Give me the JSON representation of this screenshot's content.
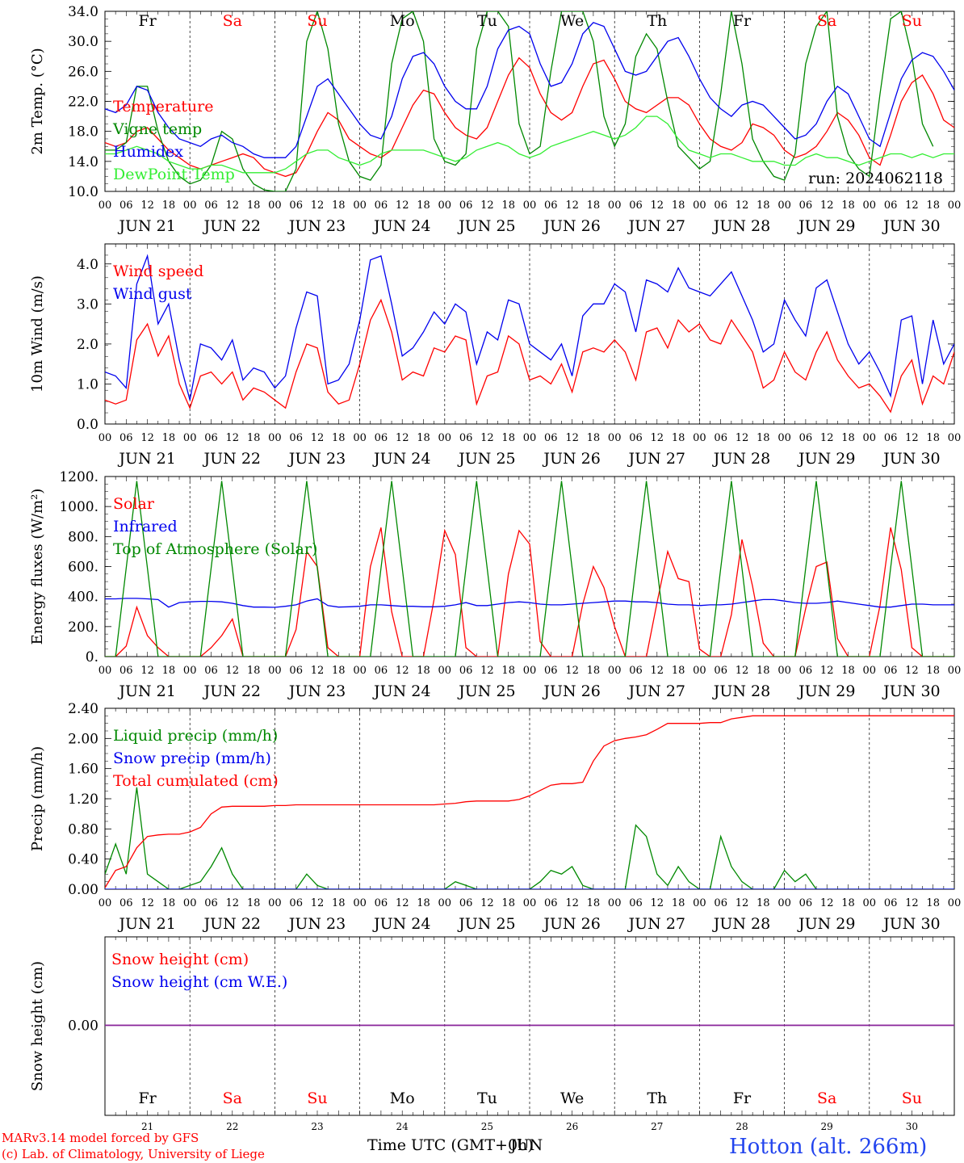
{
  "meta": {
    "run_label": "run: 2024062118",
    "footer_model": "MARv3.14 model forced by GFS",
    "footer_lab": "(c) Lab. of Climatology, University of Liege",
    "footer_time": "Time UTC (GMT+0h)",
    "footer_jun": "JUN",
    "station": "Hotton (alt. 266m)"
  },
  "day_labels": [
    "Fr",
    "Sa",
    "Su",
    "Mo",
    "Tu",
    "We",
    "Th",
    "Fr",
    "Sa",
    "Su"
  ],
  "weekend_days": [
    1,
    2,
    8,
    9
  ],
  "dates": [
    "JUN 21",
    "JUN 22",
    "JUN 23",
    "JUN 24",
    "JUN 25",
    "JUN 26",
    "JUN 27",
    "JUN 28",
    "JUN 29",
    "JUN 30"
  ],
  "date_numbers": [
    "21",
    "22",
    "23",
    "24",
    "25",
    "26",
    "27",
    "28",
    "29",
    "30"
  ],
  "hour_labels": [
    "00",
    "06",
    "12",
    "18"
  ],
  "colors": {
    "red": "#ff0000",
    "green": "#008800",
    "blue": "#0000ee",
    "lightgreen": "#33ee33",
    "purple": "#882299"
  },
  "chart_data": [
    {
      "type": "line",
      "ylabel": "2m Temp. (°C)",
      "ylim": [
        10,
        34
      ],
      "yticks": [
        "10.0",
        "14.0",
        "18.0",
        "22.0",
        "26.0",
        "30.0",
        "34.0"
      ],
      "x": "hours since JUN 21 00 UTC, 3-hourly",
      "series": [
        {
          "name": "Temperature",
          "color": "red",
          "values": [
            16.5,
            16,
            16.5,
            18,
            18.5,
            17,
            15.5,
            14.5,
            13.5,
            13,
            13.5,
            14,
            14.5,
            15,
            14.5,
            13,
            12.5,
            12,
            12.5,
            15,
            18,
            20.5,
            19.5,
            17,
            16,
            15,
            14.5,
            15.5,
            18.5,
            21.5,
            23.5,
            23,
            20.5,
            18.5,
            17.5,
            17,
            18.5,
            22,
            25.5,
            27.8,
            26.5,
            23,
            20.5,
            19.5,
            20.5,
            24,
            27,
            27.5,
            25,
            22,
            21,
            20.5,
            21.5,
            22.5,
            22.5,
            21.5,
            19,
            17,
            16,
            15.5,
            16.5,
            19,
            18.5,
            17.5,
            15.5,
            14.5,
            15,
            16,
            18,
            20.5,
            19.5,
            17.5,
            14.5,
            13.5,
            17.5,
            22,
            24.5,
            25.5,
            23,
            19.5,
            18.5
          ]
        },
        {
          "name": "Vigne temp",
          "color": "green",
          "values": [
            15.5,
            15.5,
            16.5,
            24,
            24,
            18,
            14,
            12,
            11,
            11.5,
            13.5,
            18,
            17,
            13,
            11,
            10.2,
            10,
            10,
            13,
            30,
            34,
            29,
            19,
            14,
            12,
            11.5,
            13.5,
            27,
            33,
            34,
            30,
            17,
            14,
            13.5,
            15,
            29,
            34,
            34,
            32,
            19,
            15,
            16,
            26,
            34,
            34,
            34,
            30,
            20,
            16,
            19,
            28,
            31,
            29,
            22,
            16,
            14.5,
            13,
            14,
            23,
            34,
            27,
            17,
            14,
            12,
            11.5,
            15,
            27,
            32,
            34,
            20,
            15,
            13,
            12,
            23,
            33,
            34,
            28,
            19,
            16
          ]
        },
        {
          "name": "Humidex",
          "color": "blue",
          "values": [
            21,
            20.5,
            21.5,
            24,
            23.5,
            20.5,
            18.5,
            17,
            16.5,
            16,
            17,
            17.5,
            16.5,
            16,
            15,
            14.5,
            14.5,
            14.5,
            16,
            20,
            24,
            25,
            23,
            21,
            19,
            17.5,
            17,
            20,
            25,
            28,
            28.5,
            27,
            24,
            22,
            21,
            21,
            24,
            29,
            31.5,
            32,
            31,
            27,
            24,
            24.5,
            27,
            31,
            32.5,
            32,
            29,
            26,
            25.5,
            26,
            28,
            30,
            30.5,
            28,
            25,
            22.5,
            21,
            20,
            21.5,
            22,
            21.5,
            20,
            18.5,
            17,
            17.5,
            19,
            22,
            24,
            23,
            20,
            17,
            16,
            20.5,
            25,
            27.5,
            28.5,
            28,
            26,
            23.5
          ]
        },
        {
          "name": "DewPoint Temp",
          "color": "lightgreen",
          "values": [
            15,
            15,
            15.5,
            16,
            15.5,
            15,
            14,
            13.5,
            13,
            13,
            13.5,
            13.5,
            13,
            12.5,
            12.5,
            12.5,
            12.5,
            13,
            14,
            15,
            15.5,
            15.5,
            14.5,
            14,
            13.5,
            14,
            15,
            15.5,
            15.5,
            15.5,
            15.5,
            15,
            14.5,
            14,
            14.5,
            15.5,
            16,
            16.5,
            16,
            15,
            14.5,
            15,
            16,
            16.5,
            17,
            17.5,
            18,
            17.5,
            17,
            17.5,
            18.5,
            20,
            20,
            19,
            17,
            15.5,
            15,
            14.5,
            15,
            15,
            14.5,
            14,
            14,
            14,
            13.5,
            13.5,
            14.5,
            15,
            14.5,
            14.5,
            14,
            13.5,
            14,
            14.5,
            15,
            15,
            14.5,
            15,
            14.5,
            15,
            15
          ]
        }
      ]
    },
    {
      "type": "line",
      "ylabel": "10m Wind (m/s)",
      "ylim": [
        0,
        4.5
      ],
      "yticks": [
        "0.0",
        "1.0",
        "2.0",
        "3.0",
        "4.0"
      ],
      "series": [
        {
          "name": "Wind speed",
          "color": "red",
          "values": [
            0.6,
            0.5,
            0.6,
            2.1,
            2.5,
            1.7,
            2.2,
            1.0,
            0.4,
            1.2,
            1.3,
            1.0,
            1.3,
            0.6,
            0.9,
            0.8,
            0.6,
            0.4,
            1.3,
            2.0,
            1.9,
            0.8,
            0.5,
            0.6,
            1.5,
            2.6,
            3.1,
            2.3,
            1.1,
            1.3,
            1.2,
            1.9,
            1.8,
            2.2,
            2.1,
            0.5,
            1.2,
            1.3,
            2.2,
            2.0,
            1.1,
            1.2,
            1.0,
            1.5,
            0.8,
            1.8,
            1.9,
            1.8,
            2.1,
            1.8,
            1.1,
            2.3,
            2.4,
            1.9,
            2.6,
            2.3,
            2.5,
            2.1,
            2.0,
            2.6,
            2.2,
            1.8,
            0.9,
            1.1,
            1.8,
            1.3,
            1.1,
            1.8,
            2.3,
            1.6,
            1.2,
            0.9,
            1.0,
            0.7,
            0.3,
            1.2,
            1.6,
            0.5,
            1.2,
            1.0,
            1.8
          ]
        },
        {
          "name": "Wind gust",
          "color": "blue",
          "values": [
            1.3,
            1.2,
            0.9,
            3.5,
            4.2,
            2.5,
            3.0,
            1.6,
            0.6,
            2.0,
            1.9,
            1.6,
            2.1,
            1.1,
            1.4,
            1.3,
            0.9,
            1.2,
            2.4,
            3.3,
            3.2,
            1.0,
            1.1,
            1.5,
            2.6,
            4.1,
            4.2,
            3.0,
            1.7,
            1.9,
            2.3,
            2.8,
            2.5,
            3.0,
            2.8,
            1.5,
            2.3,
            2.1,
            3.1,
            3.0,
            2.0,
            1.8,
            1.6,
            2.0,
            1.2,
            2.7,
            3.0,
            3.0,
            3.5,
            3.3,
            2.3,
            3.6,
            3.5,
            3.3,
            3.9,
            3.4,
            3.3,
            3.2,
            3.5,
            3.8,
            3.2,
            2.6,
            1.8,
            2.0,
            3.1,
            2.6,
            2.2,
            3.4,
            3.6,
            2.8,
            2.0,
            1.5,
            1.8,
            1.3,
            0.7,
            2.6,
            2.7,
            1.0,
            2.6,
            1.5,
            2.0
          ]
        }
      ]
    },
    {
      "type": "line",
      "ylabel": "Energy fluxes (W/m²)",
      "ylim": [
        0,
        1200
      ],
      "yticks": [
        "0.",
        "200.",
        "400.",
        "600.",
        "800.",
        "1000.",
        "1200."
      ],
      "series": [
        {
          "name": "Solar",
          "color": "red",
          "values": [
            0,
            0,
            70,
            330,
            140,
            60,
            0,
            0,
            0,
            0,
            60,
            140,
            250,
            0,
            0,
            0,
            0,
            0,
            180,
            700,
            600,
            60,
            0,
            0,
            0,
            600,
            860,
            300,
            0,
            0,
            0,
            380,
            840,
            680,
            60,
            0,
            0,
            0,
            550,
            840,
            750,
            100,
            0,
            0,
            0,
            350,
            600,
            460,
            200,
            0,
            0,
            0,
            360,
            700,
            520,
            500,
            50,
            0,
            0,
            280,
            780,
            470,
            90,
            0,
            0,
            0,
            320,
            600,
            630,
            120,
            0,
            0,
            0,
            340,
            860,
            580,
            60,
            0,
            0,
            0,
            0
          ]
        },
        {
          "name": "Infrared",
          "color": "blue",
          "values": [
            385,
            385,
            388,
            388,
            385,
            380,
            330,
            360,
            365,
            368,
            368,
            365,
            355,
            340,
            330,
            330,
            328,
            335,
            345,
            370,
            385,
            340,
            330,
            332,
            335,
            345,
            345,
            340,
            335,
            335,
            332,
            332,
            335,
            345,
            360,
            340,
            340,
            350,
            360,
            365,
            360,
            350,
            345,
            345,
            350,
            355,
            360,
            365,
            370,
            370,
            365,
            365,
            360,
            350,
            345,
            345,
            340,
            345,
            345,
            350,
            360,
            370,
            380,
            380,
            370,
            360,
            355,
            355,
            360,
            370,
            360,
            350,
            340,
            330,
            330,
            340,
            350,
            350,
            345,
            345,
            345
          ]
        },
        {
          "name": "Top of Atmosphere (Solar)",
          "color": "green",
          "values": [
            0,
            0,
            590,
            1170,
            590,
            0,
            0,
            0,
            0,
            0,
            590,
            1170,
            590,
            0,
            0,
            0,
            0,
            0,
            590,
            1170,
            590,
            0,
            0,
            0,
            0,
            0,
            590,
            1170,
            590,
            0,
            0,
            0,
            0,
            0,
            590,
            1170,
            590,
            0,
            0,
            0,
            0,
            0,
            590,
            1170,
            590,
            0,
            0,
            0,
            0,
            0,
            590,
            1170,
            590,
            0,
            0,
            0,
            0,
            0,
            590,
            1170,
            590,
            0,
            0,
            0,
            0,
            0,
            590,
            1170,
            590,
            0,
            0,
            0,
            0,
            0,
            590,
            1170,
            590,
            0,
            0,
            0,
            0
          ]
        }
      ]
    },
    {
      "type": "line",
      "ylabel": "Precip (mm/h)",
      "ylim": [
        0,
        2.4
      ],
      "yticks": [
        "0.00",
        "0.40",
        "0.80",
        "1.20",
        "1.60",
        "2.00",
        "2.40"
      ],
      "series": [
        {
          "name": "Liquid precip (mm/h)",
          "color": "green",
          "values": [
            0.2,
            0.6,
            0.2,
            1.35,
            0.2,
            0.1,
            0,
            0,
            0.05,
            0.1,
            0.3,
            0.55,
            0.2,
            0,
            0,
            0,
            0,
            0,
            0,
            0.2,
            0.05,
            0,
            0,
            0,
            0,
            0,
            0,
            0,
            0,
            0,
            0,
            0,
            0,
            0.1,
            0.05,
            0,
            0,
            0,
            0,
            0,
            0,
            0.1,
            0.25,
            0.2,
            0.3,
            0.05,
            0,
            0,
            0,
            0,
            0.85,
            0.7,
            0.2,
            0.05,
            0.3,
            0.1,
            0,
            0,
            0.7,
            0.3,
            0.1,
            0,
            0,
            0,
            0.25,
            0.1,
            0.2,
            0,
            0,
            0,
            0,
            0,
            0,
            0,
            0,
            0,
            0,
            0,
            0,
            0,
            0
          ]
        },
        {
          "name": "Snow precip (mm/h)",
          "color": "blue",
          "values": [
            0,
            0,
            0,
            0,
            0,
            0,
            0,
            0,
            0,
            0,
            0,
            0,
            0,
            0,
            0,
            0,
            0,
            0,
            0,
            0,
            0,
            0,
            0,
            0,
            0,
            0,
            0,
            0,
            0,
            0,
            0,
            0,
            0,
            0,
            0,
            0,
            0,
            0,
            0,
            0,
            0,
            0,
            0,
            0,
            0,
            0,
            0,
            0,
            0,
            0,
            0,
            0,
            0,
            0,
            0,
            0,
            0,
            0,
            0,
            0,
            0,
            0,
            0,
            0,
            0,
            0,
            0,
            0,
            0,
            0,
            0,
            0,
            0,
            0,
            0,
            0,
            0,
            0,
            0,
            0,
            0
          ]
        },
        {
          "name": "Total cumulated (cm)",
          "color": "red",
          "values": [
            0.02,
            0.25,
            0.3,
            0.55,
            0.7,
            0.72,
            0.73,
            0.73,
            0.76,
            0.82,
            1.0,
            1.09,
            1.1,
            1.1,
            1.1,
            1.1,
            1.11,
            1.11,
            1.12,
            1.12,
            1.12,
            1.12,
            1.12,
            1.12,
            1.12,
            1.12,
            1.12,
            1.12,
            1.12,
            1.12,
            1.12,
            1.12,
            1.13,
            1.14,
            1.16,
            1.17,
            1.17,
            1.17,
            1.17,
            1.19,
            1.24,
            1.31,
            1.38,
            1.4,
            1.4,
            1.42,
            1.7,
            1.9,
            1.97,
            2.0,
            2.02,
            2.05,
            2.12,
            2.2,
            2.2,
            2.2,
            2.2,
            2.21,
            2.21,
            2.26,
            2.28,
            2.3,
            2.3,
            2.3,
            2.3,
            2.3,
            2.3,
            2.3,
            2.3,
            2.3,
            2.3,
            2.3,
            2.3,
            2.3,
            2.3,
            2.3,
            2.3,
            2.3,
            2.3,
            2.3,
            2.3
          ]
        }
      ]
    },
    {
      "type": "line",
      "ylabel": "Snow height (cm)",
      "yticks": [
        "0.00"
      ],
      "series": [
        {
          "name": "Snow height (cm)",
          "color": "red",
          "values": [
            0,
            0
          ]
        },
        {
          "name": "Snow height (cm W.E.)",
          "color": "blue",
          "values": [
            0,
            0
          ]
        }
      ]
    }
  ]
}
